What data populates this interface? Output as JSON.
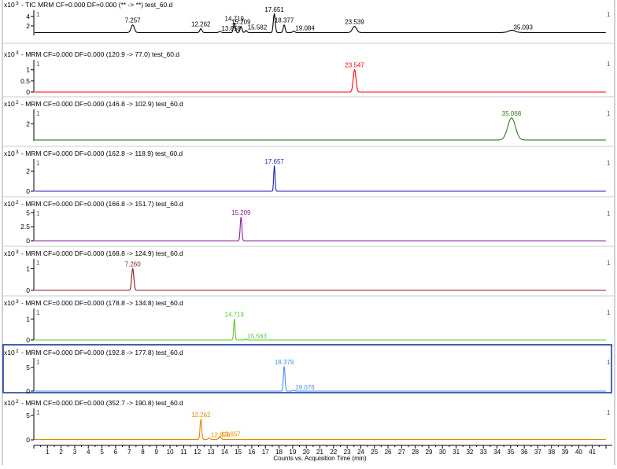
{
  "chart_data": {
    "type": "line",
    "x_axis": {
      "label": "Counts vs. Acquisition Time (min)",
      "range": [
        0,
        42
      ],
      "ticks": [
        1,
        2,
        3,
        4,
        5,
        6,
        7,
        8,
        9,
        10,
        11,
        12,
        13,
        14,
        15,
        16,
        17,
        18,
        19,
        20,
        21,
        22,
        23,
        24,
        25,
        26,
        27,
        28,
        29,
        30,
        31,
        32,
        33,
        34,
        35,
        36,
        37,
        38,
        39,
        40,
        41
      ]
    },
    "grid": false,
    "panels": [
      {
        "title": "- TIC MRM CF=0.000 DF=0.000 (** -> **) test_60.d",
        "scale_label": "x10",
        "exponent": "3",
        "color": "#000000",
        "baseline": 0.6,
        "ymax": 5.3,
        "yticks": [
          2,
          4
        ],
        "marker_left": "1",
        "marker_right": "1",
        "selected": false,
        "peaks": [
          {
            "rt": 7.257,
            "height": 1.6,
            "sigma": 0.12
          },
          {
            "rt": 12.262,
            "height": 0.8,
            "sigma": 0.08
          },
          {
            "rt": 13.658,
            "height": 0.25,
            "sigma": 0.08
          },
          {
            "rt": 14.719,
            "height": 2.0,
            "sigma": 0.07
          },
          {
            "rt": 15.209,
            "height": 1.3,
            "sigma": 0.07
          },
          {
            "rt": 15.582,
            "height": 0.45,
            "sigma": 0.07
          },
          {
            "rt": 17.651,
            "height": 3.9,
            "sigma": 0.07
          },
          {
            "rt": 18.377,
            "height": 1.6,
            "sigma": 0.07
          },
          {
            "rt": 19.084,
            "height": 0.3,
            "sigma": 0.08
          },
          {
            "rt": 23.539,
            "height": 1.3,
            "sigma": 0.15
          },
          {
            "rt": 35.093,
            "height": 0.5,
            "sigma": 0.25
          }
        ],
        "labels": [
          "7.257",
          "12.262",
          "13.658",
          "14.719",
          "15.209",
          "15.582",
          "17.651",
          "18.377",
          "19.084",
          "23.539",
          "35.093"
        ]
      },
      {
        "title": "- MRM CF=0.000 DF=0.000 (120.9 -> 77.0) test_60.d",
        "scale_label": "x10",
        "exponent": "3",
        "color": "#ff0000",
        "baseline": 0.0,
        "ymax": 1.45,
        "yticks": [
          0,
          0.5,
          1
        ],
        "marker_left": "1",
        "marker_right": "1",
        "selected": false,
        "peaks": [
          {
            "rt": 23.547,
            "height": 1.0,
            "sigma": 0.1
          }
        ],
        "labels": [
          "23.547"
        ]
      },
      {
        "title": "- MRM CF=0.000 DF=0.000 (146.8 -> 102.9) test_60.d",
        "scale_label": "x10",
        "exponent": "2",
        "color": "#2e7d1a",
        "baseline": 0.1,
        "ymax": 3.7,
        "yticks": [
          2
        ],
        "marker_left": "1",
        "marker_right": "1",
        "selected": false,
        "peaks": [
          {
            "rt": 35.068,
            "height": 2.6,
            "sigma": 0.28
          }
        ],
        "labels": [
          "35.068"
        ]
      },
      {
        "title": "- MRM CF=0.000 DF=0.000 (162.8 -> 118.9) test_60.d",
        "scale_label": "x10",
        "exponent": "3",
        "color": "#1f1fb4",
        "baseline": 0.0,
        "ymax": 3.2,
        "yticks": [
          0,
          2
        ],
        "marker_left": "1",
        "marker_right": "1",
        "selected": false,
        "peaks": [
          {
            "rt": 17.657,
            "height": 2.5,
            "sigma": 0.05
          }
        ],
        "labels": [
          "17.657"
        ]
      },
      {
        "title": "- MRM CF=0.000 DF=0.000 (166.8 -> 151.7) test_60.d",
        "scale_label": "x10",
        "exponent": "2",
        "color": "#8b1fa0",
        "baseline": 0.0,
        "ymax": 5.6,
        "yticks": [
          0,
          2.5,
          5
        ],
        "marker_left": "1",
        "marker_right": "1",
        "selected": false,
        "peaks": [
          {
            "rt": 15.209,
            "height": 4.2,
            "sigma": 0.06
          }
        ],
        "labels": [
          "15.209"
        ]
      },
      {
        "title": "- MRM CF=0.000 DF=0.000 (168.8 -> 124.9) test_60.d",
        "scale_label": "x10",
        "exponent": "3",
        "color": "#8b1a1a",
        "baseline": 0.0,
        "ymax": 1.45,
        "yticks": [
          0,
          1
        ],
        "marker_left": "1",
        "marker_right": "1",
        "selected": false,
        "peaks": [
          {
            "rt": 7.26,
            "height": 1.0,
            "sigma": 0.08
          }
        ],
        "labels": [
          "7.260"
        ]
      },
      {
        "title": "- MRM CF=0.000 DF=0.000 (178.8 -> 134.8) test_60.d",
        "scale_label": "x10",
        "exponent": "3",
        "color": "#5cc733",
        "baseline": 0.0,
        "ymax": 1.5,
        "yticks": [
          0,
          1
        ],
        "marker_left": "1",
        "marker_right": "1",
        "selected": false,
        "peaks": [
          {
            "rt": 14.719,
            "height": 1.0,
            "sigma": 0.05
          },
          {
            "rt": 15.563,
            "height": 0.04,
            "sigma": 0.08
          }
        ],
        "labels": [
          "14.719",
          "15.563"
        ]
      },
      {
        "title": "- MRM CF=0.000 DF=0.000 (192.8 -> 177.8) test_60.d",
        "scale_label": "x10",
        "exponent": "2",
        "color": "#4a8fe7",
        "baseline": 0.0,
        "ymax": 7.0,
        "yticks": [
          0,
          5
        ],
        "marker_left": "1",
        "marker_right": "1",
        "selected": true,
        "selected_border_color": "#1f3fa0",
        "peaks": [
          {
            "rt": 18.379,
            "height": 5.2,
            "sigma": 0.06
          },
          {
            "rt": 19.076,
            "height": 0.15,
            "sigma": 0.08
          }
        ],
        "labels": [
          "18.379",
          "19.076"
        ]
      },
      {
        "title": "- MRM CF=0.000 DF=0.000 (352.7 -> 190.8) test_60.d",
        "scale_label": "x10",
        "exponent": "2",
        "color": "#e08a00",
        "baseline": 0.1,
        "ymax": 6.4,
        "yticks": [
          0,
          5
        ],
        "marker_left": "1",
        "marker_right": "1",
        "selected": false,
        "peaks": [
          {
            "rt": 12.262,
            "height": 4.1,
            "sigma": 0.06
          },
          {
            "rt": 12.878,
            "height": 0.3,
            "sigma": 0.07
          },
          {
            "rt": 13.657,
            "height": 0.5,
            "sigma": 0.08
          }
        ],
        "labels": [
          "12.262",
          "12.878",
          "13.657"
        ]
      }
    ]
  }
}
